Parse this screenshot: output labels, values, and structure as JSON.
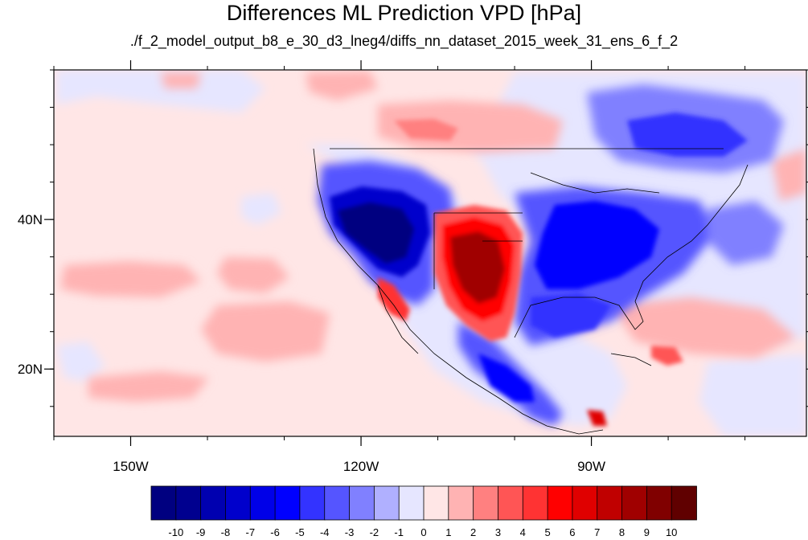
{
  "title": "Differences ML Prediction VPD [hPa]",
  "subtitle": "./f_2_model_output_b8_e_30_d3_lneg4/diffs_nn_dataset_2015_week_31_ens_6_f_2",
  "map": {
    "lon_range": [
      -160,
      -62
    ],
    "lat_range": [
      11,
      60
    ],
    "x_ticks": [
      {
        "lon": -150,
        "label": "150W"
      },
      {
        "lon": -120,
        "label": "120W"
      },
      {
        "lon": -90,
        "label": "90W"
      }
    ],
    "y_ticks": [
      {
        "lat": 40,
        "label": "40N"
      },
      {
        "lat": 20,
        "label": "20N"
      }
    ],
    "minor_lon_step": 10,
    "minor_lat_step": 5
  },
  "colorbar": {
    "labels": [
      "-10",
      "-9",
      "-8",
      "-7",
      "-6",
      "-5",
      "-4",
      "-3",
      "-2",
      "-1",
      "0",
      "1",
      "2",
      "3",
      "4",
      "5",
      "6",
      "7",
      "8",
      "9",
      "10"
    ],
    "colors": [
      "#000080",
      "#00008f",
      "#0000b0",
      "#0000cc",
      "#0000e8",
      "#0000ff",
      "#3333ff",
      "#5555ff",
      "#8080ff",
      "#b0b0ff",
      "#e6e6ff",
      "#ffe6e6",
      "#ffb3b3",
      "#ff8080",
      "#ff5555",
      "#ff3333",
      "#ff0000",
      "#e00000",
      "#c00000",
      "#a00000",
      "#800000",
      "#600000"
    ]
  },
  "regions": [
    {
      "name": "desert-southwest-negative",
      "value": -10
    },
    {
      "name": "southern-plains-positive",
      "value": 8
    },
    {
      "name": "great-lakes-negative",
      "value": -5
    },
    {
      "name": "southeast-negative",
      "value": -5
    },
    {
      "name": "canada-prairies-positive",
      "value": 3
    },
    {
      "name": "hudson-bay-negative",
      "value": -5
    },
    {
      "name": "north-pacific-positive",
      "value": 1
    },
    {
      "name": "western-atlantic-positive",
      "value": 3
    },
    {
      "name": "baja-positive",
      "value": 5
    },
    {
      "name": "mexico-negative",
      "value": -5
    },
    {
      "name": "central-america-negative",
      "value": -4
    },
    {
      "name": "gulf-negative",
      "value": -3
    }
  ]
}
